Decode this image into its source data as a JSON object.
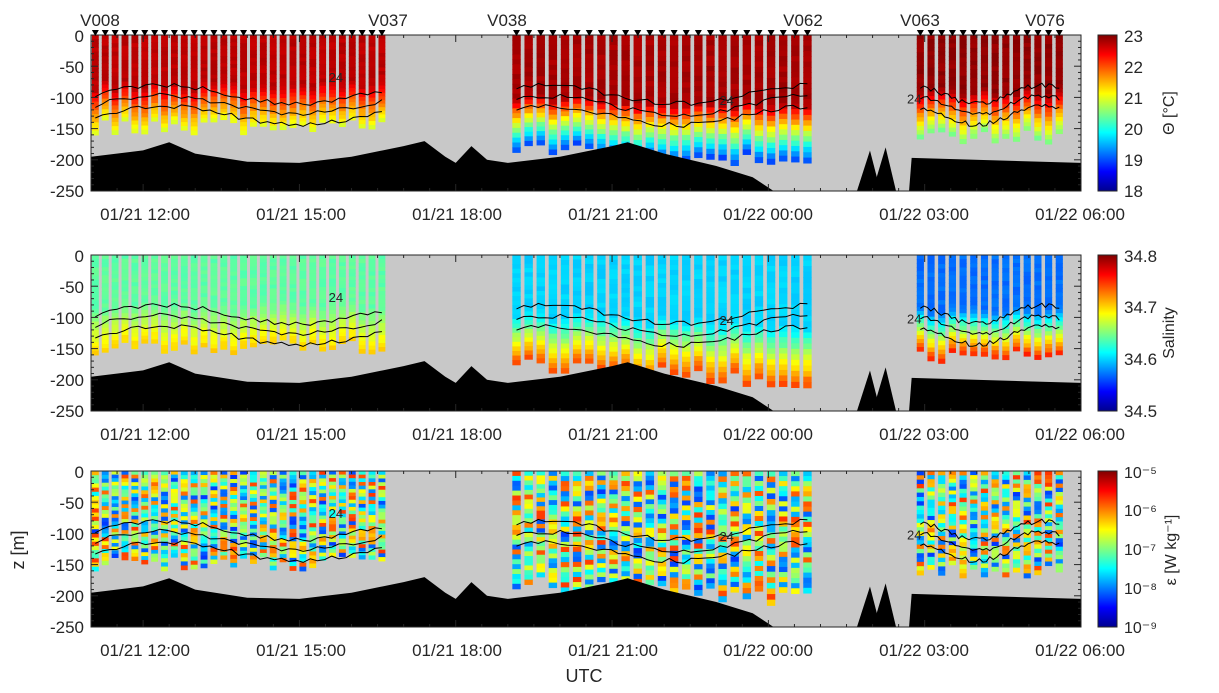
{
  "figure": {
    "xlabel": "UTC",
    "time_tick_labels": [
      "01/21 12:00",
      "01/21 15:00",
      "01/21 18:00",
      "01/21 21:00",
      "01/22 00:00",
      "01/22 03:00",
      "01/22 06:00"
    ],
    "depth_tick_labels": [
      "0",
      "-50",
      "-100",
      "-150",
      "-200",
      "-250"
    ],
    "station_labels": [
      "V008",
      "V037",
      "V038",
      "V062",
      "V063",
      "V076"
    ],
    "contour_label": "24",
    "colors": {
      "seabed": "#000000",
      "no_data": "#c8c8c8",
      "contour": "#000000"
    }
  },
  "chart_data": [
    {
      "type": "heatmap",
      "panel": "top",
      "variable": "Θ",
      "colorbar_label": "Θ [°C]",
      "colorbar_ticks": [
        "23",
        "22",
        "21",
        "20",
        "19",
        "18"
      ],
      "clim": [
        18,
        23
      ],
      "colormap": "jet",
      "xlim": [
        "01/21 11:00",
        "01/22 06:00"
      ],
      "ylim": [
        -250,
        0
      ],
      "ylabel": "",
      "stations": [
        {
          "range": "V008–V037",
          "time_start": "01/21 11:05",
          "time_end": "01/21 16:35",
          "profiles": 30,
          "surface_value": 22.7,
          "deep_value": 21.0,
          "max_depth": -160
        },
        {
          "range": "V038–V062",
          "time_start": "01/21 19:10",
          "time_end": "01/22 00:45",
          "profiles": 25,
          "surface_value": 22.8,
          "deep_value": 19.0,
          "max_depth": -190
        },
        {
          "range": "V063–V076",
          "time_start": "01/22 02:55",
          "time_end": "01/22 05:35",
          "profiles": 14,
          "surface_value": 22.9,
          "deep_value": 20.5,
          "max_depth": -175
        }
      ],
      "contour_levels": [
        24
      ]
    },
    {
      "type": "heatmap",
      "panel": "middle",
      "variable": "Salinity",
      "colorbar_label": "Salinity",
      "colorbar_ticks": [
        "34.8",
        "34.7",
        "34.6",
        "34.5"
      ],
      "clim": [
        34.5,
        34.8
      ],
      "colormap": "jet",
      "xlim": [
        "01/21 11:00",
        "01/22 06:00"
      ],
      "ylim": [
        -250,
        0
      ],
      "ylabel": "",
      "stations": [
        {
          "range": "V008–V037",
          "surface_value": 34.64,
          "deep_value": 34.7
        },
        {
          "range": "V038–V062",
          "surface_value": 34.6,
          "deep_value": 34.74
        },
        {
          "range": "V063–V076",
          "surface_value": 34.57,
          "deep_value": 34.75
        }
      ],
      "contour_levels": [
        24
      ]
    },
    {
      "type": "heatmap",
      "panel": "bottom",
      "variable": "ε",
      "colorbar_label": "ε [W kg⁻¹]",
      "colorbar_ticks": [
        "10⁻⁵",
        "10⁻⁶",
        "10⁻⁷",
        "10⁻⁸",
        "10⁻⁹"
      ],
      "clim": [
        1e-09,
        1e-05
      ],
      "log_scale": true,
      "colormap": "jet",
      "xlim": [
        "01/21 11:00",
        "01/22 06:00"
      ],
      "ylim": [
        -250,
        0
      ],
      "ylabel": "z [m]",
      "stations": [
        {
          "range": "V008–V037",
          "typical_value": 1e-07
        },
        {
          "range": "V038–V062",
          "typical_value": 1e-07
        },
        {
          "range": "V063–V076",
          "typical_value": 1e-07
        }
      ],
      "contour_levels": [
        24
      ]
    }
  ]
}
